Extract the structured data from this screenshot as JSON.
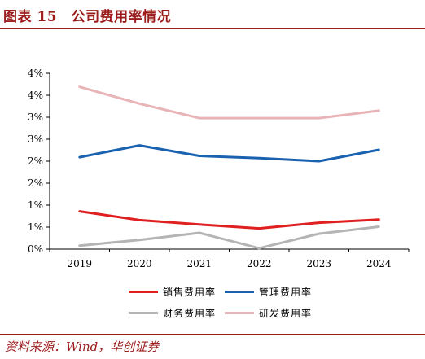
{
  "figure": {
    "title": "图表 15　公司费用率情况",
    "source": "资料来源：Wind，华创证券"
  },
  "chart_data": {
    "type": "line",
    "categories": [
      "2019",
      "2020",
      "2021",
      "2022",
      "2023",
      "2024"
    ],
    "y_tick_labels": [
      "0%",
      "1%",
      "1%",
      "2%",
      "2%",
      "3%",
      "3%",
      "4%",
      "4%"
    ],
    "ylim": [
      0,
      4
    ],
    "grid": false,
    "legend_position": "bottom",
    "series": [
      {
        "name": "销售费用率",
        "color": "#e02020",
        "values": [
          0.86,
          0.66,
          0.56,
          0.47,
          0.6,
          0.67
        ]
      },
      {
        "name": "管理费用率",
        "color": "#1a62b0",
        "values": [
          2.09,
          2.36,
          2.12,
          2.07,
          2.0,
          2.26
        ]
      },
      {
        "name": "财务费用率",
        "color": "#b4b4b4",
        "values": [
          0.08,
          0.21,
          0.37,
          0.02,
          0.35,
          0.51
        ]
      },
      {
        "name": "研发费用率",
        "color": "#e8b4b8",
        "values": [
          3.69,
          3.31,
          2.98,
          2.98,
          2.98,
          3.15
        ]
      }
    ]
  }
}
